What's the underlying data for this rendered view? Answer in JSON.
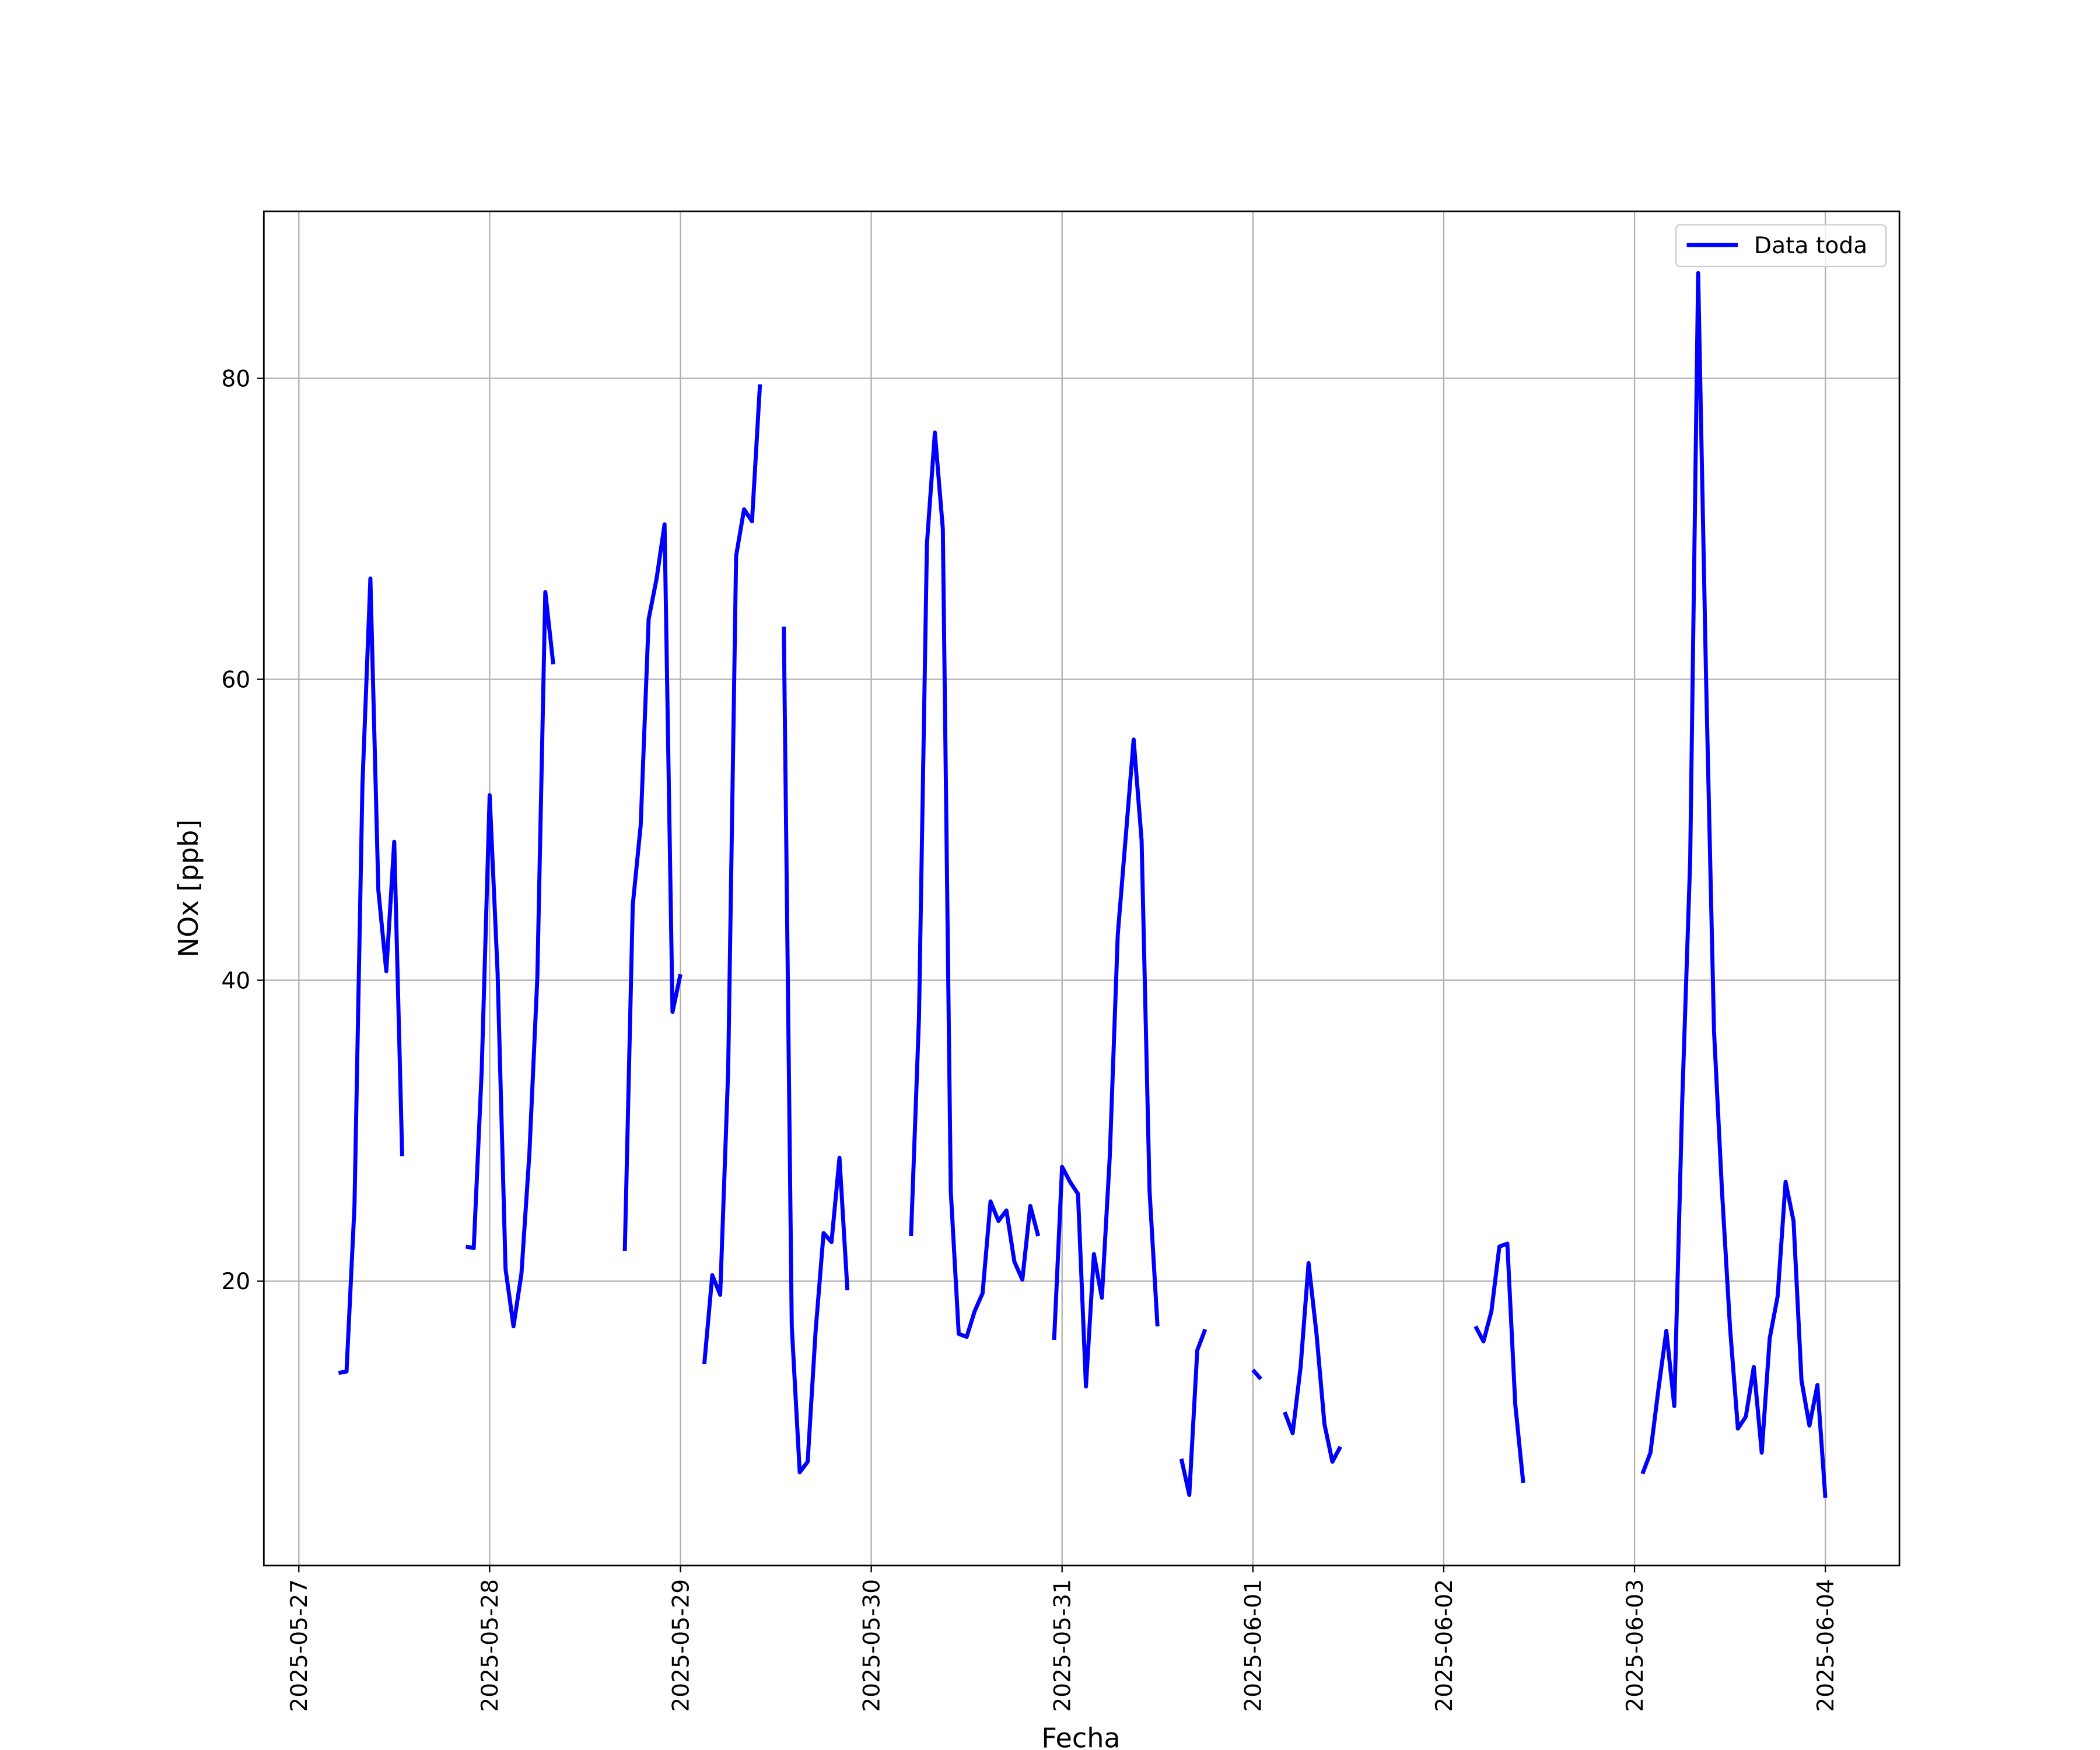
{
  "chart_data": {
    "type": "line",
    "xlabel": "Fecha",
    "ylabel": "NOx [ppb]",
    "x": [
      "2025-05-27 05:00",
      "2025-05-27 06:00",
      "2025-05-27 07:00",
      "2025-05-27 08:00",
      "2025-05-27 09:00",
      "2025-05-27 10:00",
      "2025-05-27 11:00",
      "2025-05-27 12:00",
      "2025-05-27 13:00",
      "2025-05-27 14:00",
      "2025-05-27 21:00",
      "2025-05-27 22:00",
      "2025-05-27 23:00",
      "2025-05-28 00:00",
      "2025-05-28 01:00",
      "2025-05-28 02:00",
      "2025-05-28 03:00",
      "2025-05-28 04:00",
      "2025-05-28 05:00",
      "2025-05-28 06:00",
      "2025-05-28 07:00",
      "2025-05-28 08:00",
      "2025-05-28 09:00",
      "2025-05-28 17:00",
      "2025-05-28 18:00",
      "2025-05-28 19:00",
      "2025-05-28 20:00",
      "2025-05-28 21:00",
      "2025-05-28 22:00",
      "2025-05-28 23:00",
      "2025-05-29 00:00",
      "2025-05-29 01:00",
      "2025-05-29 03:00",
      "2025-05-29 04:00",
      "2025-05-29 05:00",
      "2025-05-29 06:00",
      "2025-05-29 07:00",
      "2025-05-29 08:00",
      "2025-05-29 09:00",
      "2025-05-29 10:00",
      "2025-05-29 11:00",
      "2025-05-29 13:00",
      "2025-05-29 14:00",
      "2025-05-29 15:00",
      "2025-05-29 16:00",
      "2025-05-29 17:00",
      "2025-05-29 18:00",
      "2025-05-29 19:00",
      "2025-05-29 20:00",
      "2025-05-29 21:00",
      "2025-05-29 22:00",
      "2025-05-30 05:00",
      "2025-05-30 06:00",
      "2025-05-30 07:00",
      "2025-05-30 08:00",
      "2025-05-30 09:00",
      "2025-05-30 10:00",
      "2025-05-30 11:00",
      "2025-05-30 12:00",
      "2025-05-30 13:00",
      "2025-05-30 14:00",
      "2025-05-30 15:00",
      "2025-05-30 16:00",
      "2025-05-30 17:00",
      "2025-05-30 18:00",
      "2025-05-30 19:00",
      "2025-05-30 20:00",
      "2025-05-30 21:00",
      "2025-05-30 22:00",
      "2025-05-30 23:00",
      "2025-05-31 00:00",
      "2025-05-31 01:00",
      "2025-05-31 02:00",
      "2025-05-31 03:00",
      "2025-05-31 04:00",
      "2025-05-31 05:00",
      "2025-05-31 06:00",
      "2025-05-31 07:00",
      "2025-05-31 08:00",
      "2025-05-31 09:00",
      "2025-05-31 10:00",
      "2025-05-31 11:00",
      "2025-05-31 12:00",
      "2025-05-31 13:00",
      "2025-05-31 15:00",
      "2025-05-31 16:00",
      "2025-05-31 17:00",
      "2025-05-31 18:00",
      "2025-05-31 19:00",
      "2025-06-01 00:00",
      "2025-06-01 01:00",
      "2025-06-01 02:00",
      "2025-06-01 04:00",
      "2025-06-01 05:00",
      "2025-06-01 06:00",
      "2025-06-01 07:00",
      "2025-06-01 08:00",
      "2025-06-01 09:00",
      "2025-06-01 10:00",
      "2025-06-01 11:00",
      "2025-06-01 12:00",
      "2025-06-02 04:00",
      "2025-06-02 05:00",
      "2025-06-02 06:00",
      "2025-06-02 07:00",
      "2025-06-02 08:00",
      "2025-06-02 09:00",
      "2025-06-02 10:00",
      "2025-06-02 11:00",
      "2025-06-03 01:00",
      "2025-06-03 02:00",
      "2025-06-03 03:00",
      "2025-06-03 04:00",
      "2025-06-03 05:00",
      "2025-06-03 06:00",
      "2025-06-03 07:00",
      "2025-06-03 08:00",
      "2025-06-03 09:00",
      "2025-06-03 10:00",
      "2025-06-03 11:00",
      "2025-06-03 12:00",
      "2025-06-03 13:00",
      "2025-06-03 14:00",
      "2025-06-03 15:00",
      "2025-06-03 16:00",
      "2025-06-03 17:00",
      "2025-06-03 18:00",
      "2025-06-03 19:00",
      "2025-06-03 20:00",
      "2025-06-03 21:00",
      "2025-06-03 22:00",
      "2025-06-03 23:00",
      "2025-06-04 00:00"
    ],
    "series": [
      {
        "name": "Data toda",
        "color": "#0000ff",
        "values": [
          13.9,
          14.0,
          25.0,
          53.0,
          66.7,
          46.0,
          40.6,
          49.2,
          28.3,
          null,
          22.3,
          22.2,
          34.0,
          52.3,
          40.5,
          20.8,
          17.0,
          20.5,
          28.5,
          40.2,
          65.8,
          61.0,
          null,
          22.0,
          45.0,
          50.3,
          64.0,
          66.7,
          70.3,
          37.9,
          40.4,
          null,
          14.5,
          20.4,
          19.1,
          34.0,
          68.2,
          71.3,
          70.5,
          79.6,
          null,
          63.5,
          17.0,
          7.3,
          8.0,
          16.7,
          23.2,
          22.6,
          28.2,
          19.4,
          null,
          23.0,
          37.5,
          69.0,
          76.4,
          70.0,
          26.0,
          16.5,
          16.3,
          18.0,
          19.2,
          25.3,
          24.0,
          24.7,
          21.3,
          20.1,
          25.0,
          23.0,
          null,
          16.1,
          27.6,
          26.6,
          25.8,
          13.0,
          21.8,
          18.9,
          28.3,
          43.0,
          49.5,
          56.0,
          49.3,
          26.0,
          17.0,
          null,
          8.2,
          5.8,
          15.4,
          16.8,
          null,
          14.1,
          13.5,
          null,
          11.3,
          9.9,
          14.3,
          21.2,
          16.5,
          10.5,
          8.0,
          9.0,
          null,
          17.0,
          16.0,
          18.0,
          22.3,
          22.5,
          11.8,
          6.6,
          null,
          7.2,
          8.6,
          12.8,
          16.7,
          11.7,
          32.0,
          48.0,
          87.0,
          60.0,
          36.6,
          26.0,
          17.0,
          10.2,
          11.0,
          14.3,
          8.6,
          16.2,
          19.0,
          26.6,
          24.0,
          13.4,
          10.4,
          13.1,
          5.6
        ]
      }
    ],
    "xlim": [
      "2025-05-26 19:36",
      "2025-06-04 09:19"
    ],
    "xticks": [
      "2025-05-27",
      "2025-05-28",
      "2025-05-29",
      "2025-05-30",
      "2025-05-31",
      "2025-06-01",
      "2025-06-02",
      "2025-06-03",
      "2025-06-04"
    ],
    "ylim": [
      1.1,
      91.1
    ],
    "yticks": [
      20,
      40,
      60,
      80
    ],
    "grid": true,
    "legend": "upper right"
  }
}
